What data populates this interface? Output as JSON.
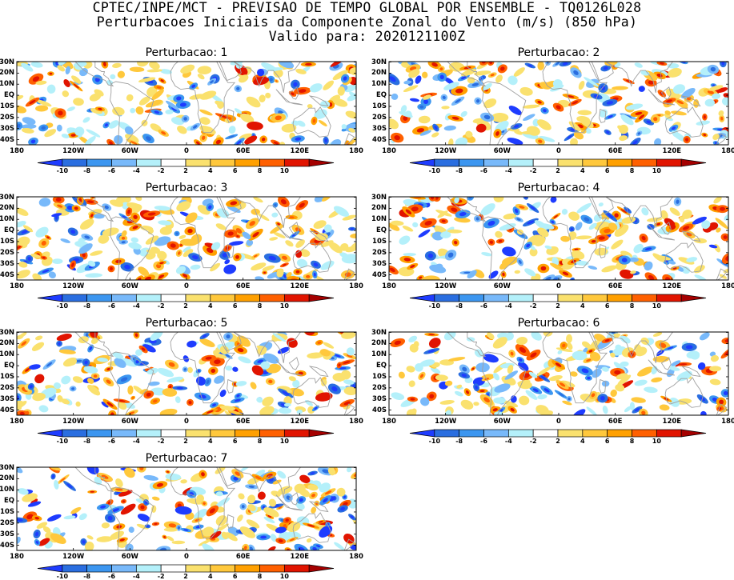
{
  "header": {
    "line1": "CPTEC/INPE/MCT - PREVISAO DE TEMPO GLOBAL POR ENSEMBLE - TQ0126L028",
    "line2": "Perturbacoes Iniciais da Componente Zonal do Vento (m/s) (850 hPa)",
    "line3": "Valido para: 2020121100Z"
  },
  "panels": [
    {
      "title": "Perturbacao: 1"
    },
    {
      "title": "Perturbacao: 2"
    },
    {
      "title": "Perturbacao: 3"
    },
    {
      "title": "Perturbacao: 4"
    },
    {
      "title": "Perturbacao: 5"
    },
    {
      "title": "Perturbacao: 6"
    },
    {
      "title": "Perturbacao: 7"
    }
  ],
  "lat_labels": [
    "30N",
    "20N",
    "10N",
    "EQ",
    "10S",
    "20S",
    "30S",
    "40S"
  ],
  "lon_labels": [
    "180",
    "120W",
    "60W",
    "0",
    "60E",
    "120E",
    "180"
  ],
  "colorbar": {
    "labels": [
      "-10",
      "-8",
      "-6",
      "-4",
      "-2",
      "2",
      "4",
      "6",
      "8",
      "10"
    ],
    "colors": [
      "#1e3cff",
      "#2a6ee0",
      "#3c96f0",
      "#78b9fa",
      "#b4f0fa",
      "#ffffff",
      "#fae16e",
      "#ffc83c",
      "#ffa000",
      "#ff6000",
      "#e11400",
      "#a50000"
    ]
  },
  "map": {
    "land_outline_color": "#a0a0a0",
    "lat_range": [
      -45,
      30
    ],
    "lon_range": [
      -180,
      180
    ]
  }
}
